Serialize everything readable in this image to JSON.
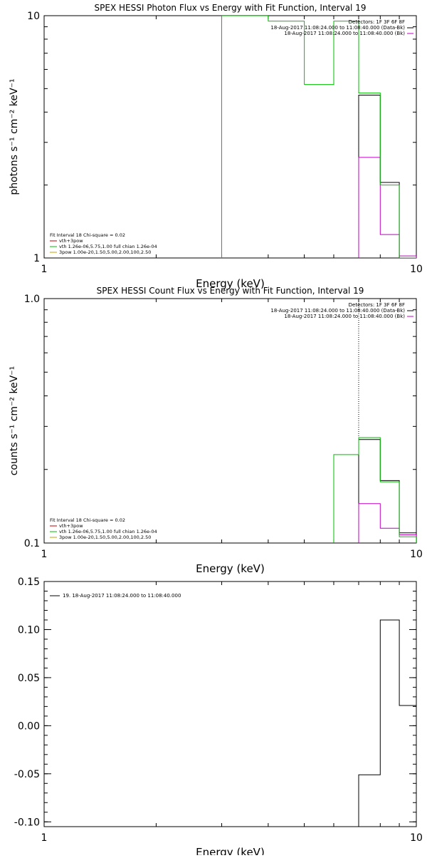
{
  "chart_data": [
    {
      "type": "line",
      "title": "SPEX HESSI Photon Flux vs Energy with Fit Function, Interval 19",
      "xlabel": "Energy (keV)",
      "ylabel": "photons s⁻¹ cm⁻² keV⁻¹",
      "x_scale": "log",
      "y_scale": "log",
      "xlim": [
        1,
        10
      ],
      "ylim": [
        1,
        10
      ],
      "x_ticks": [
        {
          "v": 1,
          "label": "1"
        },
        {
          "v": 10,
          "label": "10"
        }
      ],
      "y_ticks": [
        {
          "v": 1,
          "label": "1"
        },
        {
          "v": 10,
          "label": "10"
        }
      ],
      "vline": 7.0,
      "legend_top": [
        "Detectors: 1F 3F 6F 8F",
        "18-Aug-2017 11:08:24.000 to 11:08:40.000 (Data-Bk)",
        "18-Aug-2017 11:08:24.000 to 11:08:40.000 (Bk)"
      ],
      "legend_top_colors": [
        "none",
        "#000000",
        "#c000c0"
      ],
      "legend_bottom": [
        "Fit Interval 18   Chi-square = 0.02",
        "vth+3pow",
        "vth 1.26e-06,5.75,1.00  full chian 1.26e-04",
        "3pow 1.00e-20,1.50,5.00,2.00,100,2.50"
      ],
      "legend_bottom_colors": [
        "none",
        "#c00000",
        "#00c000",
        "#c0a000"
      ],
      "series": [
        {
          "name": "Data-Bk",
          "color": "#000000",
          "edges": [
            7.0,
            8.0,
            9.0,
            10.0
          ],
          "values": [
            4.7,
            2.05,
            1.0
          ]
        },
        {
          "name": "Bk",
          "color": "#c000c0",
          "edges": [
            7.0,
            8.0,
            9.0,
            10.0
          ],
          "values": [
            2.6,
            1.25,
            1.02
          ]
        },
        {
          "name": "vth",
          "color": "#00c000",
          "edges": [
            3.0,
            4.0,
            5.0,
            6.0,
            7.0,
            8.0,
            9.0,
            10.0
          ],
          "values": [
            10.0,
            9.5,
            5.2,
            9.5,
            4.8,
            2.0,
            1.0
          ]
        }
      ]
    },
    {
      "type": "line",
      "title": "SPEX HESSI Count Flux vs Energy with Fit Function, Interval 19",
      "xlabel": "Energy (keV)",
      "ylabel": "counts s⁻¹ cm⁻² keV⁻¹",
      "x_scale": "log",
      "y_scale": "log",
      "xlim": [
        1,
        10
      ],
      "ylim": [
        0.1,
        1.0
      ],
      "x_ticks": [
        {
          "v": 1,
          "label": "1"
        },
        {
          "v": 10,
          "label": "10"
        }
      ],
      "y_ticks": [
        {
          "v": 0.1,
          "label": "0.1"
        },
        {
          "v": 1.0,
          "label": "1.0"
        }
      ],
      "vline": 7.0,
      "legend_top": [
        "Detectors: 1F 3F 6F 8F",
        "18-Aug-2017 11:08:24.000 to 11:08:40.000 (Data-Bk)",
        "18-Aug-2017 11:08:24.000 to 11:08:40.000 (Bk)"
      ],
      "legend_top_colors": [
        "none",
        "#000000",
        "#c000c0"
      ],
      "legend_bottom": [
        "Fit Interval 18   Chi-square = 0.02",
        "vth+3pow",
        "vth 1.26e-06,5.75,1.00  full chian 1.26e-04",
        "3pow 1.00e-20,1.50,5.00,2.00,100,2.50"
      ],
      "legend_bottom_colors": [
        "none",
        "#c00000",
        "#00c000",
        "#c0a000"
      ],
      "series": [
        {
          "name": "Data-Bk",
          "color": "#000000",
          "edges": [
            7.0,
            8.0,
            9.0,
            10.0
          ],
          "values": [
            0.265,
            0.18,
            0.11
          ]
        },
        {
          "name": "Bk",
          "color": "#c000c0",
          "edges": [
            7.0,
            8.0,
            9.0,
            10.0
          ],
          "values": [
            0.145,
            0.115,
            0.108
          ]
        },
        {
          "name": "vth",
          "color": "#00c000",
          "edges": [
            6.0,
            7.0,
            8.0,
            9.0,
            10.0
          ],
          "values": [
            0.23,
            0.27,
            0.178,
            0.106
          ]
        }
      ]
    },
    {
      "type": "line",
      "title": "",
      "xlabel": "Energy (keV)",
      "ylabel": "",
      "x_scale": "log",
      "y_scale": "linear",
      "xlim": [
        1,
        10
      ],
      "ylim": [
        -0.105,
        0.15
      ],
      "x_ticks": [
        {
          "v": 1,
          "label": "1"
        },
        {
          "v": 10,
          "label": "10"
        }
      ],
      "y_ticks": [
        {
          "v": 0.15,
          "label": "0.15"
        },
        {
          "v": 0.1,
          "label": "0.10"
        },
        {
          "v": 0.05,
          "label": "0.05"
        },
        {
          "v": 0.0,
          "label": "0.00"
        },
        {
          "v": -0.05,
          "label": "-0.05"
        },
        {
          "v": -0.1,
          "label": "-0.10"
        }
      ],
      "legend_top": [
        "19. 18-Aug-2017 11:08:24.000 to 11:08:40.000"
      ],
      "legend_top_colors": [
        "#000000"
      ],
      "series": [
        {
          "name": "19. 18-Aug-2017 11:08:24.000 to 11:08:40.000",
          "color": "#000000",
          "edges": [
            7.0,
            8.0,
            9.0,
            10.0
          ],
          "values": [
            -0.051,
            0.11,
            0.021
          ]
        }
      ]
    }
  ]
}
